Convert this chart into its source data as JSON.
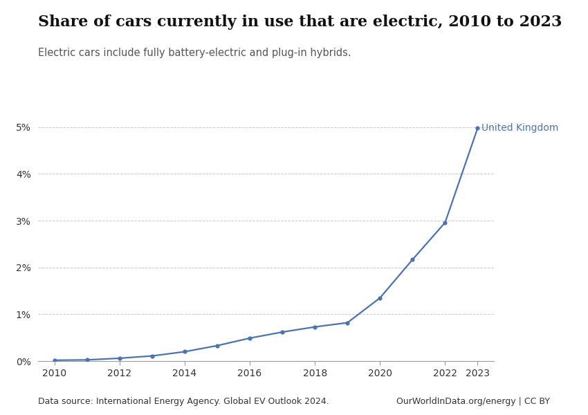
{
  "title": "Share of cars currently in use that are electric, 2010 to 2023",
  "subtitle": "Electric cars include fully battery-electric and plug-in hybrids.",
  "source_text": "Data source: International Energy Agency. Global EV Outlook 2024.",
  "source_right": "OurWorldInData.org/energy | CC BY",
  "series_label": "United Kingdom",
  "line_color": "#4c72b0",
  "years": [
    2010,
    2011,
    2012,
    2013,
    2014,
    2015,
    2016,
    2017,
    2018,
    2019,
    2020,
    2021,
    2022,
    2023
  ],
  "values": [
    0.00018,
    0.00025,
    0.0006,
    0.0011,
    0.002,
    0.0033,
    0.0049,
    0.0062,
    0.0073,
    0.0082,
    0.0135,
    0.0217,
    0.0296,
    0.0498
  ],
  "xlim": [
    2009.5,
    2023.5
  ],
  "ylim": [
    0,
    0.055
  ],
  "yticks": [
    0,
    0.01,
    0.02,
    0.03,
    0.04,
    0.05
  ],
  "ytick_labels": [
    "0%",
    "1%",
    "2%",
    "3%",
    "4%",
    "5%"
  ],
  "xticks": [
    2010,
    2012,
    2014,
    2016,
    2018,
    2020,
    2022,
    2023
  ],
  "background_color": "#ffffff",
  "grid_color": "#c8c8c8",
  "owid_box_color": "#1a3a5c",
  "owid_box_red": "#c0392b",
  "title_fontsize": 16,
  "subtitle_fontsize": 10.5,
  "label_fontsize": 10,
  "tick_fontsize": 10,
  "source_fontsize": 9
}
